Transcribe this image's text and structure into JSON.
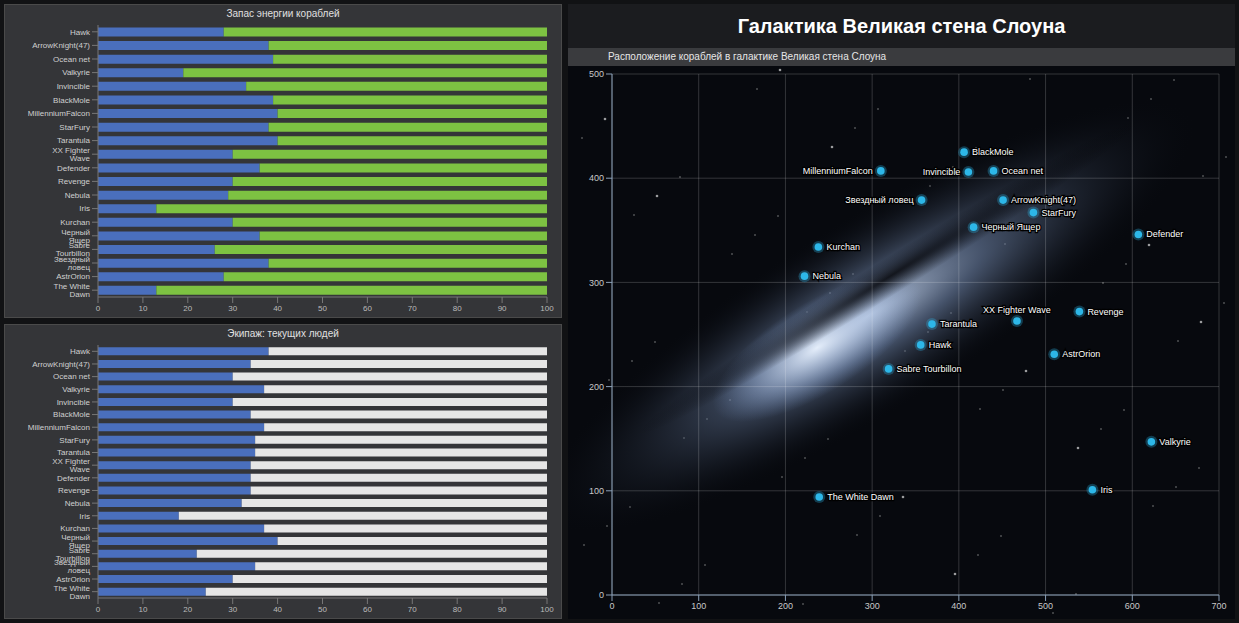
{
  "chart_data": [
    {
      "type": "bar",
      "title": "Запас энергии кораблей",
      "orientation": "horizontal",
      "stacked": true,
      "grid": false,
      "categories": [
        "Hawk",
        "ArrowKnight(47)",
        "Ocean net",
        "Valkyrie",
        "Invincible",
        "BlackMole",
        "MillenniumFalcon",
        "StarFury",
        "Tarantula",
        "XX Fighter Wave",
        "Defender",
        "Revenge",
        "Nebula",
        "Iris",
        "Kurchan",
        "Черный Ящер",
        "Sabre Tourbillon",
        "Звездный ловец",
        "AstrOrion",
        "The White Dawn"
      ],
      "series": [
        {
          "color": "#4a6fbd",
          "values": [
            28,
            38,
            39,
            19,
            33,
            39,
            40,
            38,
            40,
            30,
            36,
            30,
            29,
            13,
            30,
            36,
            26,
            38,
            28,
            13
          ]
        },
        {
          "color": "#7dc242",
          "values": [
            72,
            62,
            61,
            81,
            67,
            61,
            60,
            62,
            60,
            70,
            64,
            70,
            71,
            87,
            70,
            64,
            74,
            62,
            72,
            87
          ]
        }
      ],
      "xlim": [
        0,
        100
      ],
      "xticks": [
        0,
        10,
        20,
        30,
        40,
        50,
        60,
        70,
        80,
        90,
        100
      ]
    },
    {
      "type": "bar",
      "title": "Экипаж: текущих людей",
      "orientation": "horizontal",
      "stacked": true,
      "grid": false,
      "categories": [
        "Hawk",
        "ArrowKnight(47)",
        "Ocean net",
        "Valkyrie",
        "Invincible",
        "BlackMole",
        "MillenniumFalcon",
        "StarFury",
        "Tarantula",
        "XX Fighter Wave",
        "Defender",
        "Revenge",
        "Nebula",
        "Iris",
        "Kurchan",
        "Черный Ящер",
        "Sabre Tourbillon",
        "Звездный ловец",
        "AstrOrion",
        "The White Dawn"
      ],
      "series": [
        {
          "color": "#4a6fbd",
          "values": [
            38,
            34,
            30,
            37,
            30,
            34,
            37,
            35,
            35,
            34,
            34,
            34,
            32,
            18,
            37,
            40,
            22,
            35,
            30,
            24
          ]
        },
        {
          "color": "#e6e6e6",
          "values": [
            62,
            66,
            70,
            63,
            70,
            66,
            63,
            65,
            65,
            66,
            66,
            66,
            68,
            82,
            63,
            60,
            78,
            65,
            70,
            76
          ]
        }
      ],
      "xlim": [
        0,
        100
      ],
      "xticks": [
        0,
        10,
        20,
        30,
        40,
        50,
        60,
        70,
        80,
        90,
        100
      ]
    },
    {
      "type": "scatter",
      "title": "Галактика Великая стена Слоуна",
      "subtitle": "Расположение кораблей в галактике Великая стена Слоуна",
      "grid": true,
      "color": "#2db7e8",
      "point_labels": [
        "Hawk",
        "ArrowKnight(47)",
        "Ocean net",
        "Valkyrie",
        "Invincible",
        "BlackMole",
        "MillenniumFalcon",
        "StarFury",
        "Tarantula",
        "XX Fighter Wave",
        "Defender",
        "Revenge",
        "Nebula",
        "Iris",
        "Kurchan",
        "Черный Ящер",
        "Sabre Tourbillon",
        "Звездный ловец",
        "AstrOrion",
        "The White Dawn"
      ],
      "x": [
        356,
        451,
        440,
        622,
        411,
        406,
        310,
        486,
        369,
        467,
        607,
        539,
        222,
        554,
        238,
        417,
        319,
        357,
        510,
        239
      ],
      "values": [
        240,
        379,
        407,
        147,
        406,
        425,
        407,
        367,
        260,
        263,
        346,
        272,
        306,
        101,
        334,
        353,
        217,
        379,
        231,
        94
      ],
      "xlim": [
        0,
        700
      ],
      "xticks": [
        0,
        100,
        200,
        300,
        400,
        500,
        600,
        700
      ],
      "ylim": [
        0,
        500
      ],
      "yticks": [
        0,
        100,
        200,
        300,
        400,
        500
      ]
    }
  ]
}
